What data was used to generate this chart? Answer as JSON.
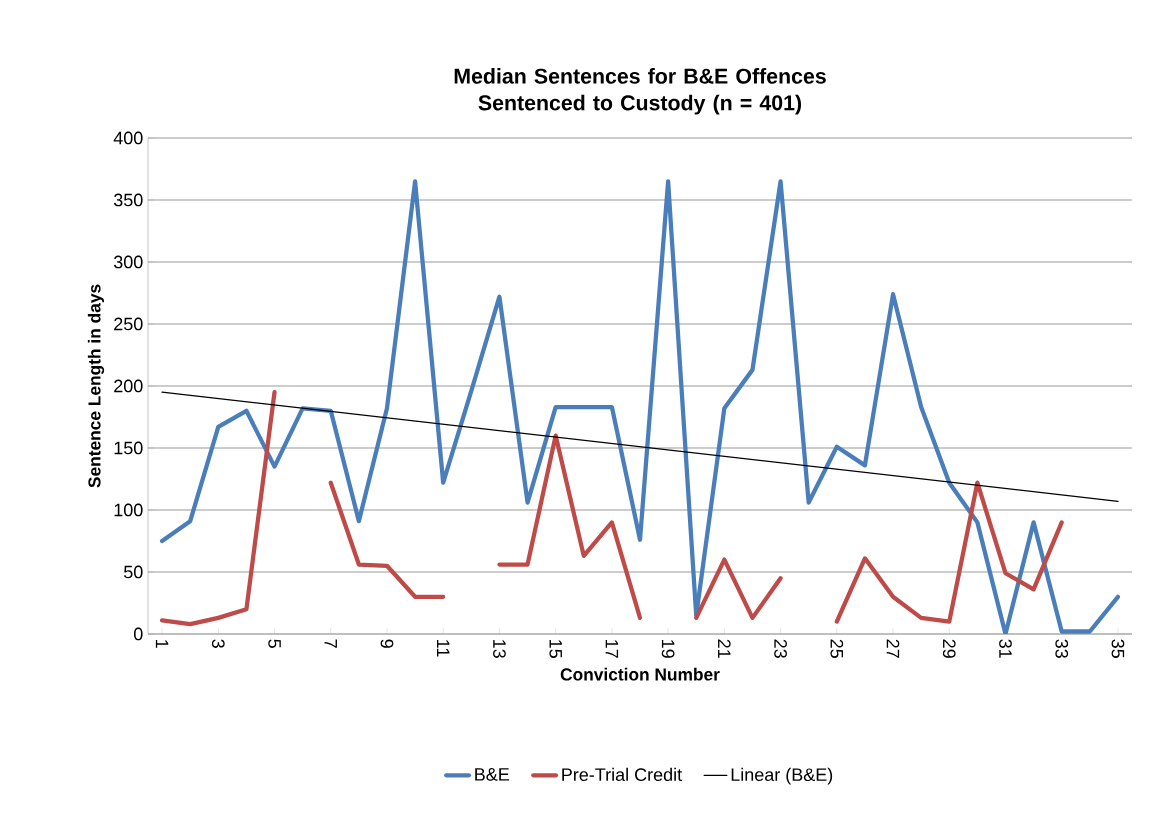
{
  "chart_data": {
    "type": "line",
    "title": "Median Sentences for B&E Offences Sentenced to Custody (n = 401)",
    "xlabel": "Conviction Number",
    "ylabel": "Sentence Length in days",
    "x": [
      1,
      2,
      3,
      4,
      5,
      6,
      7,
      8,
      9,
      10,
      11,
      12,
      13,
      14,
      15,
      16,
      17,
      18,
      19,
      20,
      21,
      22,
      23,
      24,
      25,
      26,
      27,
      28,
      29,
      30,
      31,
      32,
      33,
      34,
      35
    ],
    "series": [
      {
        "name": "B&E",
        "color": "#4a7ebb",
        "values": [
          75,
          91,
          167,
          180,
          135,
          182,
          180,
          91,
          182,
          365,
          122,
          196,
          272,
          106,
          183,
          183,
          183,
          76,
          365,
          15,
          182,
          213,
          365,
          106,
          151,
          136,
          274,
          183,
          122,
          90,
          0,
          90,
          2,
          2,
          30
        ]
      },
      {
        "name": "Pre-Trial Credit",
        "color": "#be4b48",
        "values": [
          11,
          8,
          13,
          20,
          195,
          null,
          122,
          56,
          55,
          30,
          30,
          null,
          56,
          56,
          160,
          63,
          90,
          13,
          null,
          13,
          60,
          13,
          45,
          null,
          10,
          61,
          30,
          13,
          10,
          122,
          49,
          36,
          90,
          null,
          null
        ]
      },
      {
        "name": "Linear (B&E)",
        "color": "#000000",
        "x": [
          1,
          35
        ],
        "values": [
          195,
          107
        ]
      }
    ],
    "xlim": [
      0.5,
      35.5
    ],
    "xticks": [
      1,
      3,
      5,
      7,
      9,
      11,
      13,
      15,
      17,
      19,
      21,
      23,
      25,
      27,
      29,
      31,
      33,
      35
    ],
    "ylim": [
      0,
      400
    ],
    "yticks": [
      0,
      50,
      100,
      150,
      200,
      250,
      300,
      350,
      400
    ],
    "grid": "y",
    "legend": "bottom",
    "marker": "none",
    "line_style": "solid"
  }
}
